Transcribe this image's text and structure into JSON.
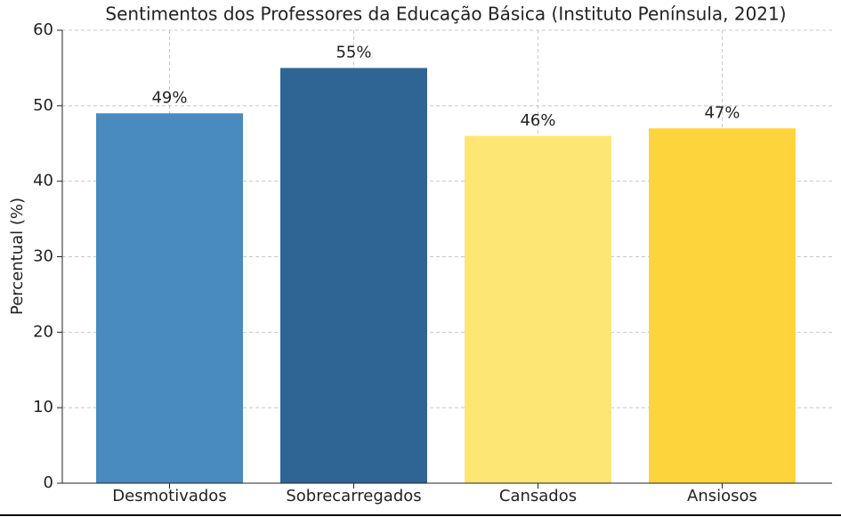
{
  "chart_data": {
    "type": "bar",
    "title": "Sentimentos dos Professores da Educação Básica (Instituto Península, 2021)",
    "y_label": "Percentual (%)",
    "categories": [
      "Desmotivados",
      "Sobrecarregados",
      "Cansados",
      "Ansiosos"
    ],
    "values": [
      49,
      55,
      46,
      47
    ],
    "value_labels": [
      "49%",
      "55%",
      "46%",
      "47%"
    ],
    "colors": [
      "#4a8bbf",
      "#2f6594",
      "#fee675",
      "#fed43d"
    ],
    "ylim": [
      0,
      60
    ],
    "yticks": [
      0,
      10,
      20,
      30,
      40,
      50,
      60
    ],
    "grid": true
  }
}
